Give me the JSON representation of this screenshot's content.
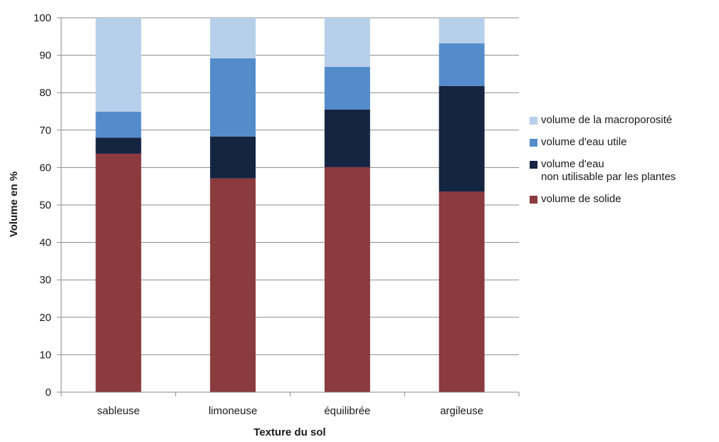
{
  "chart_data": {
    "type": "bar",
    "stacked": true,
    "title": "",
    "xlabel": "Texture du sol",
    "ylabel": "Volume en %",
    "ylim": [
      0,
      100
    ],
    "yticks": [
      "0",
      "10",
      "20",
      "30",
      "40",
      "50",
      "60",
      "70",
      "80",
      "90",
      "100"
    ],
    "grid": true,
    "legend_position": "right",
    "categories": [
      "sableuse",
      "limoneuse",
      "équilibrée",
      "argileuse"
    ],
    "series": [
      {
        "name": "volume de solide",
        "color": "#8b3a3e",
        "values": [
          63.7,
          57.1,
          60.1,
          53.6
        ]
      },
      {
        "name": "volume d'eau non utilisable par les plantes",
        "color": "#152441",
        "values": [
          4.3,
          11.2,
          15.4,
          28.2
        ]
      },
      {
        "name": "volume d'eau utile",
        "color": "#548ccb",
        "values": [
          6.9,
          20.9,
          11.4,
          11.4
        ]
      },
      {
        "name": "volume de la macroporosité",
        "color": "#b7cfea",
        "values": [
          25.1,
          10.8,
          13.1,
          6.8
        ]
      }
    ]
  },
  "legend": {
    "items": [
      {
        "lines": [
          "volume de la macroporosité"
        ],
        "color": "#b7cfea"
      },
      {
        "lines": [
          "volume d'eau utile"
        ],
        "color": "#548ccb"
      },
      {
        "lines": [
          "volume d'eau",
          "non utilisable par les plantes"
        ],
        "color": "#152441"
      },
      {
        "lines": [
          "volume de solide"
        ],
        "color": "#8b3a3e"
      }
    ]
  }
}
